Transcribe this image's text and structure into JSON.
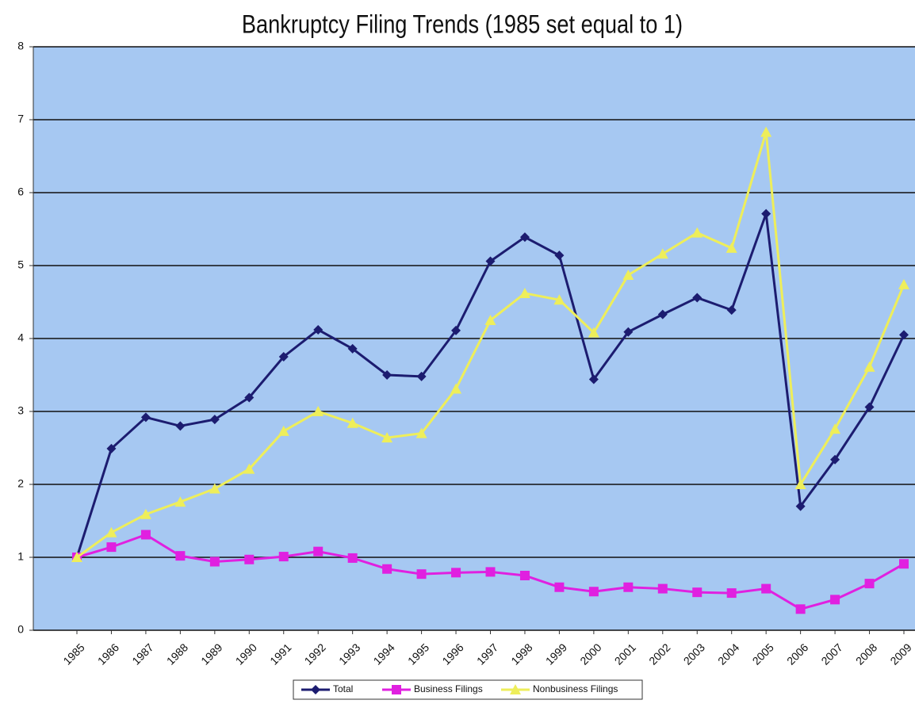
{
  "chart_data": {
    "type": "line",
    "title": "Bankruptcy Filing Trends (1985 set equal to 1)",
    "categories": [
      "1985",
      "1986",
      "1987",
      "1988",
      "1989",
      "1990",
      "1991",
      "1992",
      "1993",
      "1994",
      "1995",
      "1996",
      "1997",
      "1998",
      "1999",
      "2000",
      "2001",
      "2002",
      "2003",
      "2004",
      "2005",
      "2006",
      "2007",
      "2008",
      "2009"
    ],
    "series": [
      {
        "name": "Total",
        "color": "#1c1c70",
        "marker": "diamond",
        "values": [
          1.0,
          2.49,
          2.92,
          2.8,
          2.89,
          3.19,
          3.75,
          4.12,
          3.86,
          3.5,
          3.48,
          4.11,
          5.06,
          5.39,
          5.14,
          3.44,
          4.09,
          4.33,
          4.56,
          4.39,
          5.71,
          1.7,
          2.34,
          3.06,
          4.05
        ]
      },
      {
        "name": "Business Filings",
        "color": "#e020e0",
        "marker": "square",
        "values": [
          1.0,
          1.14,
          1.31,
          1.02,
          0.94,
          0.97,
          1.01,
          1.08,
          0.99,
          0.84,
          0.77,
          0.79,
          0.8,
          0.75,
          0.59,
          0.53,
          0.59,
          0.57,
          0.52,
          0.51,
          0.57,
          0.29,
          0.42,
          0.64,
          0.91
        ]
      },
      {
        "name": "Nonbusiness Filings",
        "color": "#eeee5a",
        "marker": "triangle",
        "values": [
          1.0,
          1.34,
          1.59,
          1.76,
          1.94,
          2.21,
          2.73,
          3.0,
          2.84,
          2.64,
          2.7,
          3.31,
          4.25,
          4.62,
          4.53,
          4.08,
          4.87,
          5.16,
          5.45,
          5.24,
          6.83,
          2.0,
          2.76,
          3.61,
          4.74
        ]
      }
    ],
    "ylim": [
      0,
      8
    ],
    "yticks": [
      0,
      1,
      2,
      3,
      4,
      5,
      6,
      7,
      8
    ],
    "grid": true,
    "plot_background": "#a6c8f2",
    "legend": "bottom"
  }
}
